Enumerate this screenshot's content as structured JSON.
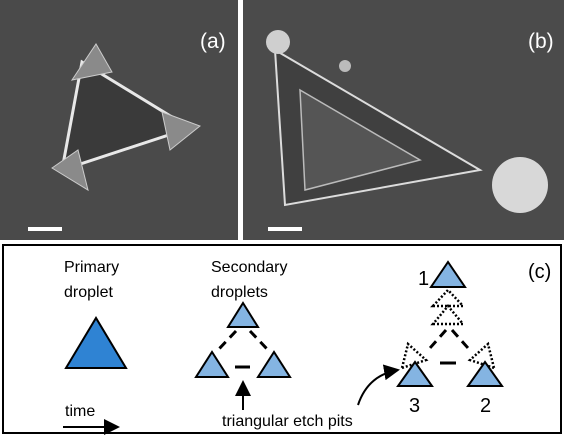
{
  "panel_a": {
    "label": "(a)"
  },
  "panel_b": {
    "label": "(b)"
  },
  "panel_c": {
    "label": "(c)",
    "primary": [
      "Primary",
      "droplet"
    ],
    "secondary": [
      "Secondary",
      "droplets"
    ],
    "time": "time",
    "etch_pits": "triangular etch pits",
    "numbers": [
      "1",
      "2",
      "3"
    ]
  }
}
